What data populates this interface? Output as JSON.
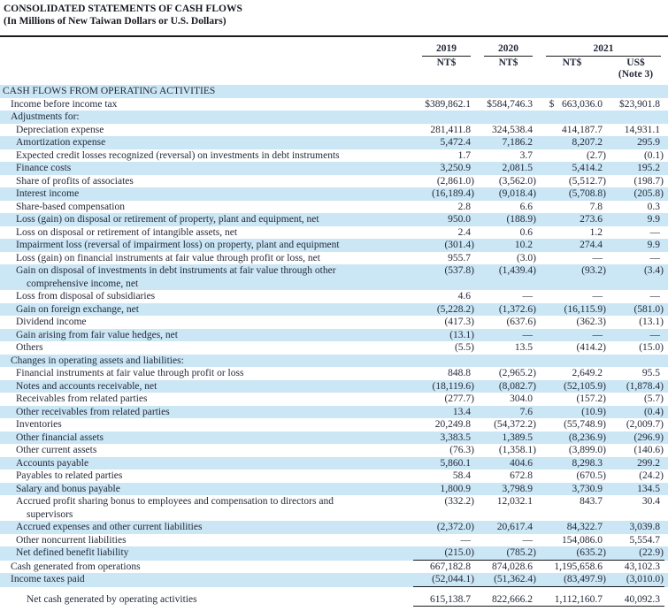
{
  "title": {
    "line1": "CONSOLIDATED STATEMENTS OF CASH FLOWS",
    "line2": "(In Millions of New Taiwan Dollars or U.S. Dollars)"
  },
  "columns": {
    "year_2019": "2019",
    "year_2020": "2020",
    "year_2021": "2021",
    "currency_2019": "NT$",
    "currency_2020": "NT$",
    "currency_2021_nt": "NT$",
    "currency_2021_us": "US$",
    "note": "(Note 3)"
  },
  "colors": {
    "stripe": "#cbe6f4",
    "text": "#242a3a",
    "rule": "#1c1c1c"
  },
  "rows": [
    {
      "label": "CASH FLOWS FROM OPERATING ACTIVITIES",
      "indent": 0,
      "stripe": true,
      "values": [
        "",
        "",
        "",
        ""
      ]
    },
    {
      "label": "Income before income tax",
      "indent": 1,
      "stripe": false,
      "values": [
        "$389,862.1",
        "$584,746.3",
        "$   663,036.0",
        "$23,901.8"
      ]
    },
    {
      "label": "Adjustments for:",
      "indent": 1,
      "stripe": true,
      "values": [
        "",
        "",
        "",
        ""
      ]
    },
    {
      "label": "Depreciation expense",
      "indent": 2,
      "stripe": false,
      "values": [
        "281,411.8",
        "324,538.4",
        "414,187.7",
        "14,931.1"
      ]
    },
    {
      "label": "Amortization expense",
      "indent": 2,
      "stripe": true,
      "values": [
        "5,472.4",
        "7,186.2",
        "8,207.2",
        "295.9"
      ]
    },
    {
      "label": "Expected credit losses recognized (reversal) on investments in debt instruments",
      "indent": 2,
      "stripe": false,
      "values": [
        "1.7",
        "3.7",
        "(2.7)",
        "(0.1)"
      ]
    },
    {
      "label": "Finance costs",
      "indent": 2,
      "stripe": true,
      "values": [
        "3,250.9",
        "2,081.5",
        "5,414.2",
        "195.2"
      ]
    },
    {
      "label": "Share of profits of associates",
      "indent": 2,
      "stripe": false,
      "values": [
        "(2,861.0)",
        "(3,562.0)",
        "(5,512.7)",
        "(198.7)"
      ]
    },
    {
      "label": "Interest income",
      "indent": 2,
      "stripe": true,
      "values": [
        "(16,189.4)",
        "(9,018.4)",
        "(5,708.8)",
        "(205.8)"
      ]
    },
    {
      "label": "Share-based compensation",
      "indent": 2,
      "stripe": false,
      "values": [
        "2.8",
        "6.6",
        "7.8",
        "0.3"
      ]
    },
    {
      "label": "Loss (gain) on disposal or retirement of property, plant and equipment, net",
      "indent": 2,
      "stripe": true,
      "values": [
        "950.0",
        "(188.9)",
        "273.6",
        "9.9"
      ]
    },
    {
      "label": "Loss on disposal or retirement of intangible assets, net",
      "indent": 2,
      "stripe": false,
      "values": [
        "2.4",
        "0.6",
        "1.2",
        "—"
      ]
    },
    {
      "label": "Impairment loss (reversal of impairment loss) on property, plant and equipment",
      "indent": 2,
      "stripe": true,
      "values": [
        "(301.4)",
        "10.2",
        "274.4",
        "9.9"
      ]
    },
    {
      "label": "Loss (gain) on financial instruments at fair value through profit or loss, net",
      "indent": 2,
      "stripe": false,
      "values": [
        "955.7",
        "(3.0)",
        "—",
        "—"
      ]
    },
    {
      "label": "Gain on disposal of investments in debt instruments at fair value through other",
      "label2": "comprehensive income, net",
      "indent": 2,
      "stripe": true,
      "values": [
        "(537.8)",
        "(1,439.4)",
        "(93.2)",
        "(3.4)"
      ]
    },
    {
      "label": "Loss from disposal of subsidiaries",
      "indent": 2,
      "stripe": false,
      "values": [
        "4.6",
        "—",
        "—",
        "—"
      ]
    },
    {
      "label": "Gain on foreign exchange, net",
      "indent": 2,
      "stripe": true,
      "values": [
        "(5,228.2)",
        "(1,372.6)",
        "(16,115.9)",
        "(581.0)"
      ]
    },
    {
      "label": "Dividend income",
      "indent": 2,
      "stripe": false,
      "values": [
        "(417.3)",
        "(637.6)",
        "(362.3)",
        "(13.1)"
      ]
    },
    {
      "label": "Gain arising from fair value hedges, net",
      "indent": 2,
      "stripe": true,
      "values": [
        "(13.1)",
        "—",
        "—",
        "—"
      ]
    },
    {
      "label": "Others",
      "indent": 2,
      "stripe": false,
      "values": [
        "(5.5)",
        "13.5",
        "(414.2)",
        "(15.0)"
      ]
    },
    {
      "label": "Changes in operating assets and liabilities:",
      "indent": 1,
      "stripe": true,
      "values": [
        "",
        "",
        "",
        ""
      ]
    },
    {
      "label": "Financial instruments at fair value through profit or loss",
      "indent": 2,
      "stripe": false,
      "values": [
        "848.8",
        "(2,965.2)",
        "2,649.2",
        "95.5"
      ]
    },
    {
      "label": "Notes and accounts receivable, net",
      "indent": 2,
      "stripe": true,
      "values": [
        "(18,119.6)",
        "(8,082.7)",
        "(52,105.9)",
        "(1,878.4)"
      ]
    },
    {
      "label": "Receivables from related parties",
      "indent": 2,
      "stripe": false,
      "values": [
        "(277.7)",
        "304.0",
        "(157.2)",
        "(5.7)"
      ]
    },
    {
      "label": "Other receivables from related parties",
      "indent": 2,
      "stripe": true,
      "values": [
        "13.4",
        "7.6",
        "(10.9)",
        "(0.4)"
      ]
    },
    {
      "label": "Inventories",
      "indent": 2,
      "stripe": false,
      "values": [
        "20,249.8",
        "(54,372.2)",
        "(55,748.9)",
        "(2,009.7)"
      ]
    },
    {
      "label": "Other financial assets",
      "indent": 2,
      "stripe": true,
      "values": [
        "3,383.5",
        "1,389.5",
        "(8,236.9)",
        "(296.9)"
      ]
    },
    {
      "label": "Other current assets",
      "indent": 2,
      "stripe": false,
      "values": [
        "(76.3)",
        "(1,358.1)",
        "(3,899.0)",
        "(140.6)"
      ]
    },
    {
      "label": "Accounts payable",
      "indent": 2,
      "stripe": true,
      "values": [
        "5,860.1",
        "404.6",
        "8,298.3",
        "299.2"
      ]
    },
    {
      "label": "Payables to related parties",
      "indent": 2,
      "stripe": false,
      "values": [
        "58.4",
        "672.8",
        "(670.5)",
        "(24.2)"
      ]
    },
    {
      "label": "Salary and bonus payable",
      "indent": 2,
      "stripe": true,
      "values": [
        "1,800.9",
        "3,798.9",
        "3,730.9",
        "134.5"
      ]
    },
    {
      "label": "Accrued profit sharing bonus to employees and compensation to directors and",
      "label2": "supervisors",
      "indent": 2,
      "stripe": false,
      "values": [
        "(332.2)",
        "12,032.1",
        "843.7",
        "30.4"
      ]
    },
    {
      "label": "Accrued expenses and other current liabilities",
      "indent": 2,
      "stripe": true,
      "values": [
        "(2,372.0)",
        "20,617.4",
        "84,322.7",
        "3,039.8"
      ]
    },
    {
      "label": "Other noncurrent liabilities",
      "indent": 2,
      "stripe": false,
      "values": [
        "—",
        "—",
        "154,086.0",
        "5,554.7"
      ]
    },
    {
      "label": "Net defined benefit liability",
      "indent": 2,
      "stripe": true,
      "underline": true,
      "values": [
        "(215.0)",
        "(785.2)",
        "(635.2)",
        "(22.9)"
      ]
    },
    {
      "label": "Cash generated from operations",
      "indent": 1,
      "stripe": false,
      "values": [
        "667,182.8",
        "874,028.6",
        "1,195,658.6",
        "43,102.3"
      ]
    },
    {
      "label": "Income taxes paid",
      "indent": 1,
      "stripe": true,
      "underline": true,
      "values": [
        "(52,044.1)",
        "(51,362.4)",
        "(83,497.9)",
        "(3,010.0)"
      ]
    },
    {
      "label": "Net cash generated by operating activities",
      "indent": 3,
      "stripe": false,
      "underline": true,
      "gap_before": 7,
      "values": [
        "615,138.7",
        "822,666.2",
        "1,112,160.7",
        "40,092.3"
      ]
    }
  ]
}
